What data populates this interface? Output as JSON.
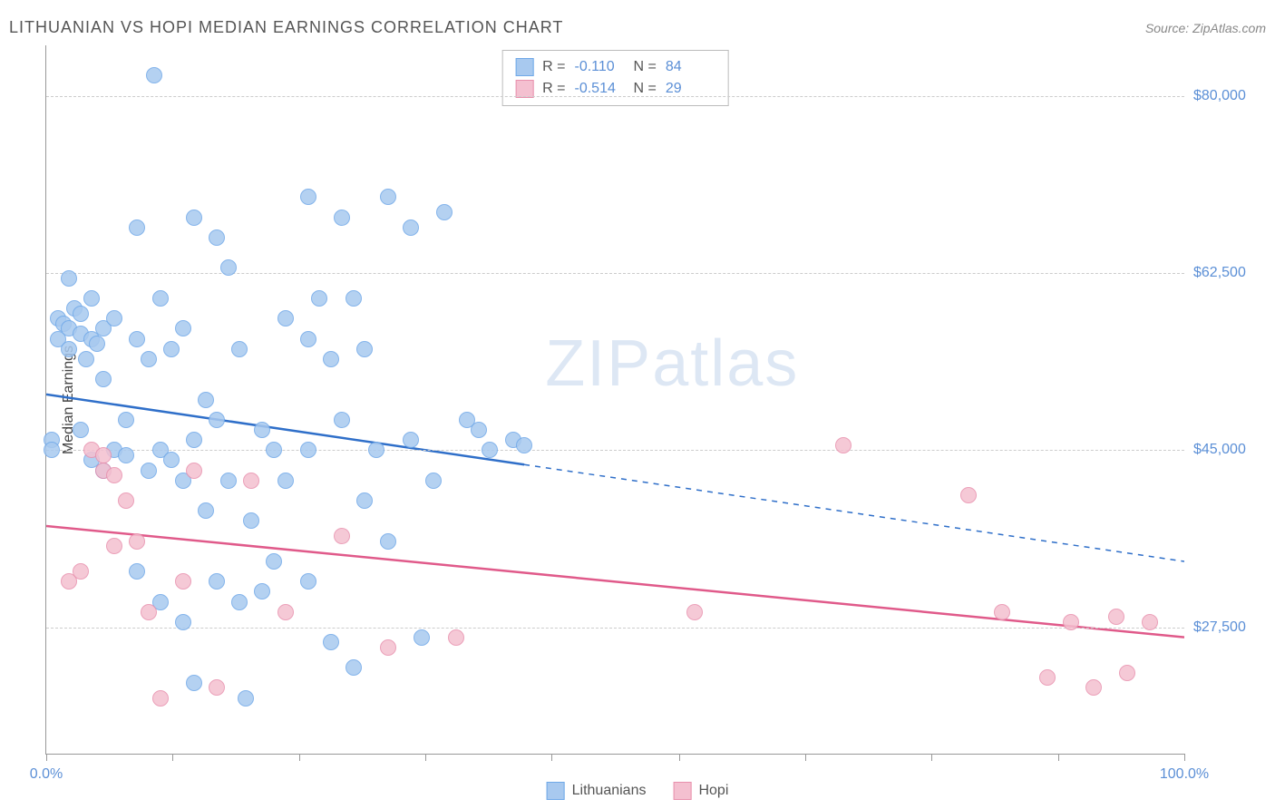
{
  "header": {
    "title": "LITHUANIAN VS HOPI MEDIAN EARNINGS CORRELATION CHART",
    "source": "Source: ZipAtlas.com"
  },
  "watermark": {
    "part1": "ZIP",
    "part2": "atlas"
  },
  "chart": {
    "type": "scatter",
    "ylabel": "Median Earnings",
    "background_color": "#ffffff",
    "grid_color": "#cccccc",
    "axis_color": "#999999",
    "label_color": "#5b8fd6",
    "title_fontsize": 18,
    "label_fontsize": 16,
    "xlim": [
      0,
      100
    ],
    "ylim": [
      15000,
      85000
    ],
    "yticks": [
      {
        "value": 27500,
        "label": "$27,500"
      },
      {
        "value": 45000,
        "label": "$45,000"
      },
      {
        "value": 62500,
        "label": "$62,500"
      },
      {
        "value": 80000,
        "label": "$80,000"
      }
    ],
    "xticks_labeled": [
      {
        "value": 0,
        "label": "0.0%"
      },
      {
        "value": 100,
        "label": "100.0%"
      }
    ],
    "xticks_minor": [
      11.1,
      22.2,
      33.3,
      44.4,
      55.6,
      66.7,
      77.8,
      88.9
    ],
    "marker_radius": 9,
    "marker_stroke_width": 1.5,
    "marker_fill_opacity": 0.25,
    "series": [
      {
        "name": "Lithuanians",
        "color_stroke": "#6fa8e8",
        "color_fill": "#a8c9ef",
        "trend_color": "#2f6fc9",
        "trend_width": 2.5,
        "trend_solid_until_x": 42,
        "R": "-0.110",
        "N": "84",
        "trend": {
          "x1": 0,
          "y1": 50500,
          "x2": 100,
          "y2": 34000
        },
        "points": [
          [
            1,
            58000
          ],
          [
            1,
            56000
          ],
          [
            1.5,
            57500
          ],
          [
            2,
            55000
          ],
          [
            2,
            57000
          ],
          [
            2.5,
            59000
          ],
          [
            0.5,
            46000
          ],
          [
            0.5,
            45000
          ],
          [
            3,
            56500
          ],
          [
            3,
            58500
          ],
          [
            3.5,
            54000
          ],
          [
            4,
            60000
          ],
          [
            4,
            56000
          ],
          [
            4.5,
            55500
          ],
          [
            5,
            57000
          ],
          [
            5,
            52000
          ],
          [
            2,
            62000
          ],
          [
            3,
            47000
          ],
          [
            4,
            44000
          ],
          [
            5,
            43000
          ],
          [
            6,
            45000
          ],
          [
            6,
            58000
          ],
          [
            7,
            48000
          ],
          [
            7,
            44500
          ],
          [
            8,
            67000
          ],
          [
            8,
            56000
          ],
          [
            8,
            33000
          ],
          [
            9,
            54000
          ],
          [
            9,
            43000
          ],
          [
            9.5,
            82000
          ],
          [
            10,
            60000
          ],
          [
            10,
            45000
          ],
          [
            10,
            30000
          ],
          [
            11,
            55000
          ],
          [
            11,
            44000
          ],
          [
            12,
            57000
          ],
          [
            12,
            42000
          ],
          [
            12,
            28000
          ],
          [
            13,
            68000
          ],
          [
            13,
            46000
          ],
          [
            14,
            50000
          ],
          [
            14,
            39000
          ],
          [
            15,
            66000
          ],
          [
            15,
            48000
          ],
          [
            15,
            32000
          ],
          [
            16,
            63000
          ],
          [
            16,
            42000
          ],
          [
            17,
            55000
          ],
          [
            17,
            30000
          ],
          [
            17.5,
            20500
          ],
          [
            18,
            38000
          ],
          [
            19,
            31000
          ],
          [
            19,
            47000
          ],
          [
            20,
            45000
          ],
          [
            20,
            34000
          ],
          [
            21,
            58000
          ],
          [
            21,
            42000
          ],
          [
            23,
            70000
          ],
          [
            23,
            56000
          ],
          [
            23,
            45000
          ],
          [
            23,
            32000
          ],
          [
            24,
            60000
          ],
          [
            25,
            54000
          ],
          [
            25,
            26000
          ],
          [
            26,
            48000
          ],
          [
            26,
            68000
          ],
          [
            27,
            60000
          ],
          [
            28,
            40000
          ],
          [
            28,
            55000
          ],
          [
            29,
            45000
          ],
          [
            30,
            36000
          ],
          [
            30,
            70000
          ],
          [
            32,
            67000
          ],
          [
            32,
            46000
          ],
          [
            33,
            26500
          ],
          [
            34,
            42000
          ],
          [
            35,
            68500
          ],
          [
            37,
            48000
          ],
          [
            38,
            47000
          ],
          [
            39,
            45000
          ],
          [
            41,
            46000
          ],
          [
            42,
            45500
          ],
          [
            27,
            23500
          ],
          [
            13,
            22000
          ]
        ]
      },
      {
        "name": "Hopi",
        "color_stroke": "#e890ad",
        "color_fill": "#f4c0d0",
        "trend_color": "#e05a8a",
        "trend_width": 2.5,
        "trend_solid_until_x": 100,
        "R": "-0.514",
        "N": "29",
        "trend": {
          "x1": 0,
          "y1": 37500,
          "x2": 100,
          "y2": 26500
        },
        "points": [
          [
            2,
            32000
          ],
          [
            3,
            33000
          ],
          [
            4,
            45000
          ],
          [
            5,
            44500
          ],
          [
            5,
            43000
          ],
          [
            6,
            42500
          ],
          [
            6,
            35500
          ],
          [
            7,
            40000
          ],
          [
            8,
            36000
          ],
          [
            9,
            29000
          ],
          [
            10,
            20500
          ],
          [
            12,
            32000
          ],
          [
            13,
            43000
          ],
          [
            15,
            21500
          ],
          [
            18,
            42000
          ],
          [
            21,
            29000
          ],
          [
            26,
            36500
          ],
          [
            30,
            25500
          ],
          [
            36,
            26500
          ],
          [
            57,
            29000
          ],
          [
            70,
            45500
          ],
          [
            81,
            40500
          ],
          [
            84,
            29000
          ],
          [
            88,
            22500
          ],
          [
            90,
            28000
          ],
          [
            92,
            21500
          ],
          [
            94,
            28500
          ],
          [
            95,
            23000
          ],
          [
            97,
            28000
          ]
        ]
      }
    ],
    "stats_box": {
      "r_label": "R =",
      "n_label": "N ="
    },
    "legend": {
      "label1": "Lithuanians",
      "label2": "Hopi"
    }
  }
}
